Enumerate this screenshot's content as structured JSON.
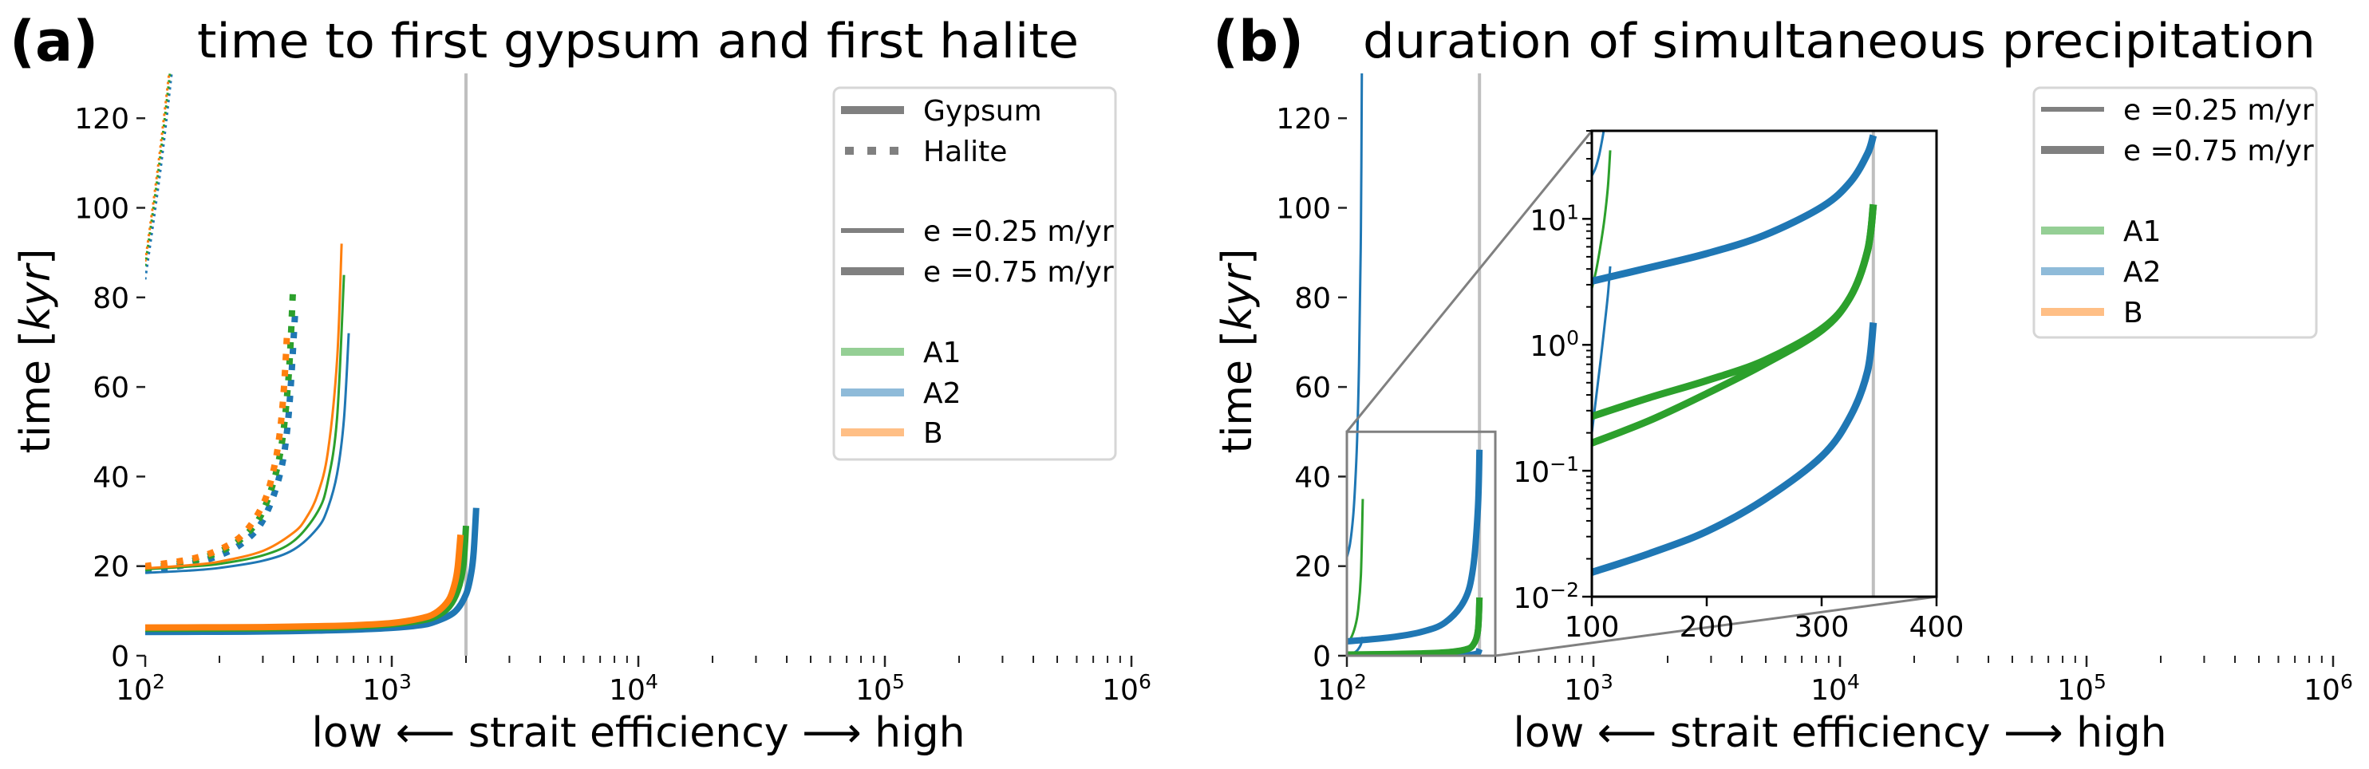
{
  "chart_data": [
    {
      "type": "line",
      "panel_label": "(a)",
      "title": "time to first gypsum and first halite",
      "xlabel": "low ⟵ strait efficiency  ⟶ high",
      "ylabel": "time [kyr]",
      "xscale": "log",
      "xlim": [
        100,
        1000000
      ],
      "ylim": [
        0,
        130
      ],
      "grid": false,
      "xticks": [
        {
          "value": 100,
          "base": "10",
          "exp": "2"
        },
        {
          "value": 1000,
          "base": "10",
          "exp": "3"
        },
        {
          "value": 10000,
          "base": "10",
          "exp": "4"
        },
        {
          "value": 100000,
          "base": "10",
          "exp": "5"
        },
        {
          "value": 1000000,
          "base": "10",
          "exp": "6"
        }
      ],
      "yticks": [
        0,
        20,
        40,
        60,
        80,
        100,
        120
      ],
      "vline": {
        "x": 2000,
        "color": "#bfbfbf"
      },
      "legend": {
        "position": "top-right",
        "entries": [
          {
            "label": "Gypsum",
            "style": "solid",
            "width": "thick",
            "color": "#808080"
          },
          {
            "label": "Halite",
            "style": "dotted",
            "width": "thick",
            "color": "#808080"
          },
          {
            "label": "",
            "style": "none"
          },
          {
            "label": "e =0.25 m/yr",
            "style": "solid",
            "width": "thin",
            "color": "#808080"
          },
          {
            "label": "e =0.75 m/yr",
            "style": "solid",
            "width": "thick",
            "color": "#808080"
          },
          {
            "label": "",
            "style": "none"
          },
          {
            "label": "A1",
            "style": "solid",
            "width": "thick",
            "color": "#2ca02c",
            "alpha": 0.5
          },
          {
            "label": "A2",
            "style": "solid",
            "width": "thick",
            "color": "#1f77b4",
            "alpha": 0.5
          },
          {
            "label": "B",
            "style": "solid",
            "width": "thick",
            "color": "#ff7f0e",
            "alpha": 0.5
          }
        ]
      },
      "series": [
        {
          "group": "A2",
          "mineral": "Halite",
          "e": "0.25 m/yr",
          "color": "#1f77b4",
          "points": [
            [
              100,
              84
            ],
            [
              115,
              108
            ],
            [
              128,
              130
            ]
          ]
        },
        {
          "group": "A1",
          "mineral": "Halite",
          "e": "0.25 m/yr",
          "color": "#2ca02c",
          "points": [
            [
              100,
              87
            ],
            [
              113,
              108
            ],
            [
              126,
              130
            ]
          ]
        },
        {
          "group": "B",
          "mineral": "Halite",
          "e": "0.25 m/yr",
          "color": "#ff7f0e",
          "points": [
            [
              100,
              88
            ],
            [
              112,
              108
            ],
            [
              125,
              130
            ]
          ]
        },
        {
          "group": "A2",
          "mineral": "Halite",
          "e": "0.75 m/yr",
          "color": "#1f77b4",
          "points": [
            [
              100,
              19
            ],
            [
              150,
              20.4
            ],
            [
              200,
              22.4
            ],
            [
              250,
              25.3
            ],
            [
              300,
              30.2
            ],
            [
              350,
              40
            ],
            [
              380,
              52.6
            ],
            [
              405,
              76
            ]
          ]
        },
        {
          "group": "A1",
          "mineral": "Halite",
          "e": "0.75 m/yr",
          "color": "#2ca02c",
          "points": [
            [
              100,
              19.5
            ],
            [
              150,
              21
            ],
            [
              200,
              23.2
            ],
            [
              250,
              26.5
            ],
            [
              300,
              32.2
            ],
            [
              350,
              44.2
            ],
            [
              380,
              61
            ],
            [
              397,
              81
            ]
          ]
        },
        {
          "group": "B",
          "mineral": "Halite",
          "e": "0.75 m/yr",
          "color": "#ff7f0e",
          "points": [
            [
              100,
              20
            ],
            [
              150,
              21.5
            ],
            [
              200,
              23.7
            ],
            [
              250,
              27.2
            ],
            [
              300,
              33.7
            ],
            [
              330,
              41
            ],
            [
              350,
              49
            ],
            [
              365,
              59.5
            ],
            [
              377,
              73
            ]
          ]
        },
        {
          "group": "A2",
          "mineral": "Gypsum",
          "e": "0.25 m/yr",
          "color": "#1f77b4",
          "points": [
            [
              100,
              18.5
            ],
            [
              150,
              19
            ],
            [
              200,
              19.6
            ],
            [
              300,
              21.2
            ],
            [
              400,
              23.7
            ],
            [
              500,
              28.5
            ],
            [
              550,
              32.9
            ],
            [
              600,
              40.6
            ],
            [
              640,
              52.9
            ],
            [
              669,
              72
            ]
          ]
        },
        {
          "group": "A1",
          "mineral": "Gypsum",
          "e": "0.25 m/yr",
          "color": "#2ca02c",
          "points": [
            [
              100,
              19.3
            ],
            [
              150,
              19.9
            ],
            [
              200,
              20.5
            ],
            [
              300,
              22.4
            ],
            [
              400,
              25.6
            ],
            [
              500,
              32.1
            ],
            [
              550,
              38.8
            ],
            [
              600,
              53.1
            ],
            [
              640,
              85
            ]
          ]
        },
        {
          "group": "B",
          "mineral": "Gypsum",
          "e": "0.25 m/yr",
          "color": "#ff7f0e",
          "points": [
            [
              100,
              19.5
            ],
            [
              150,
              20.2
            ],
            [
              200,
              21
            ],
            [
              300,
              23.4
            ],
            [
              400,
              27.5
            ],
            [
              450,
              30.8
            ],
            [
              500,
              36
            ],
            [
              550,
              45.3
            ],
            [
              600,
              66
            ],
            [
              626,
              92
            ]
          ]
        },
        {
          "group": "A2",
          "mineral": "Gypsum",
          "e": "0.75 m/yr",
          "color": "#1f77b4",
          "points": [
            [
              100,
              5.3
            ],
            [
              200,
              5.35
            ],
            [
              300,
              5.4
            ],
            [
              500,
              5.6
            ],
            [
              700,
              5.8
            ],
            [
              1000,
              6.2
            ],
            [
              1300,
              6.8
            ],
            [
              1500,
              7.6
            ],
            [
              1800,
              9.8
            ],
            [
              2000,
              13.7
            ],
            [
              2100,
              18.5
            ],
            [
              2150,
              23.3
            ],
            [
              2200,
              33
            ]
          ]
        },
        {
          "group": "A1",
          "mineral": "Gypsum",
          "e": "0.75 m/yr",
          "color": "#2ca02c",
          "points": [
            [
              100,
              6.0
            ],
            [
              200,
              6.05
            ],
            [
              300,
              6.1
            ],
            [
              500,
              6.3
            ],
            [
              700,
              6.5
            ],
            [
              1000,
              7.0
            ],
            [
              1300,
              7.8
            ],
            [
              1500,
              8.7
            ],
            [
              1700,
              10.8
            ],
            [
              1850,
              14.5
            ],
            [
              1950,
              20
            ],
            [
              2000,
              29
            ]
          ]
        },
        {
          "group": "B",
          "mineral": "Gypsum",
          "e": "0.75 m/yr",
          "color": "#ff7f0e",
          "points": [
            [
              100,
              6.3
            ],
            [
              200,
              6.35
            ],
            [
              300,
              6.4
            ],
            [
              500,
              6.6
            ],
            [
              700,
              6.8
            ],
            [
              1000,
              7.3
            ],
            [
              1300,
              8.3
            ],
            [
              1500,
              9.5
            ],
            [
              1700,
              12.4
            ],
            [
              1800,
              16.1
            ],
            [
              1850,
              19.7
            ],
            [
              1900,
              27
            ]
          ]
        }
      ]
    },
    {
      "type": "line",
      "panel_label": "(b)",
      "title": "duration of simultaneous precipitation",
      "xlabel": "low ⟵ strait efficiency  ⟶ high",
      "ylabel": "time [kyr]",
      "xscale": "log",
      "xlim": [
        100,
        1000000
      ],
      "ylim": [
        0,
        130
      ],
      "grid": false,
      "xticks": [
        {
          "value": 100,
          "base": "10",
          "exp": "2"
        },
        {
          "value": 1000,
          "base": "10",
          "exp": "3"
        },
        {
          "value": 10000,
          "base": "10",
          "exp": "4"
        },
        {
          "value": 100000,
          "base": "10",
          "exp": "5"
        },
        {
          "value": 1000000,
          "base": "10",
          "exp": "6"
        }
      ],
      "yticks": [
        0,
        20,
        40,
        60,
        80,
        100,
        120
      ],
      "vline": {
        "x": 345,
        "color": "#bfbfbf"
      },
      "zoom_region": {
        "x": [
          100,
          400
        ],
        "y": [
          0,
          50
        ]
      },
      "legend": {
        "position": "top-right",
        "entries": [
          {
            "label": "e =0.25 m/yr",
            "style": "solid",
            "width": "thin",
            "color": "#808080"
          },
          {
            "label": "e =0.75 m/yr",
            "style": "solid",
            "width": "thick",
            "color": "#808080"
          },
          {
            "label": "",
            "style": "none"
          },
          {
            "label": "A1",
            "style": "solid",
            "width": "thick",
            "color": "#2ca02c",
            "alpha": 0.5
          },
          {
            "label": "A2",
            "style": "solid",
            "width": "thick",
            "color": "#1f77b4",
            "alpha": 0.5
          },
          {
            "label": "B",
            "style": "solid",
            "width": "thick",
            "color": "#ff7f0e",
            "alpha": 0.5
          }
        ]
      },
      "series": [
        {
          "group": "A2",
          "e": "0.25 m/yr",
          "color": "#1f77b4",
          "points": [
            [
              100,
              22
            ],
            [
              103,
              25
            ],
            [
              106,
              31
            ],
            [
              108,
              38
            ],
            [
              110,
              48
            ],
            [
              112,
              65
            ],
            [
              114,
              95
            ],
            [
              115,
              130
            ]
          ]
        },
        {
          "group": "A2",
          "e": "0.25 m/yr",
          "color": "#1f77b4",
          "points": [
            [
              100,
              0.2
            ],
            [
              104,
              0.4
            ],
            [
              108,
              0.8
            ],
            [
              111,
              1.4
            ],
            [
              114,
              2.5
            ],
            [
              116,
              4.2
            ]
          ]
        },
        {
          "group": "A1",
          "e": "0.25 m/yr",
          "color": "#2ca02c",
          "points": [
            [
              100,
              2.8
            ],
            [
              104,
              4
            ],
            [
              108,
              6.5
            ],
            [
              111,
              10
            ],
            [
              114,
              18
            ],
            [
              116,
              35
            ]
          ]
        },
        {
          "group": "A2",
          "e": "0.75 m/yr",
          "color": "#1f77b4",
          "points": [
            [
              100,
              3.2
            ],
            [
              150,
              4.1
            ],
            [
              200,
              5.3
            ],
            [
              250,
              7.4
            ],
            [
              300,
              12.4
            ],
            [
              325,
              19.6
            ],
            [
              340,
              33
            ],
            [
              345,
              46
            ]
          ]
        },
        {
          "group": "A2",
          "e": "0.75 m/yr",
          "color": "#1f77b4",
          "points": [
            [
              100,
              0.0156
            ],
            [
              150,
              0.022
            ],
            [
              200,
              0.033
            ],
            [
              250,
              0.059
            ],
            [
              300,
              0.13
            ],
            [
              325,
              0.27
            ],
            [
              340,
              0.62
            ],
            [
              345,
              1.5
            ]
          ]
        },
        {
          "group": "A1",
          "e": "0.75 m/yr",
          "color": "#2ca02c",
          "points": [
            [
              100,
              0.27
            ],
            [
              150,
              0.38
            ],
            [
              200,
              0.52
            ],
            [
              250,
              0.75
            ],
            [
              300,
              1.34
            ],
            [
              325,
              2.4
            ],
            [
              340,
              5.6
            ],
            [
              345,
              13
            ]
          ]
        },
        {
          "group": "A1",
          "e": "0.75 m/yr",
          "color": "#2ca02c",
          "points": [
            [
              100,
              0.166
            ],
            [
              150,
              0.25
            ],
            [
              200,
              0.41
            ],
            [
              250,
              0.7
            ],
            [
              300,
              1.3
            ],
            [
              325,
              2.4
            ],
            [
              340,
              5.6
            ],
            [
              345,
              13
            ]
          ]
        }
      ],
      "inset": {
        "xscale": "linear",
        "yscale": "log",
        "xlim": [
          100,
          400
        ],
        "ylim": [
          0.01,
          50
        ],
        "xticks": [
          100,
          200,
          300,
          400
        ],
        "yticks": [
          {
            "value": 0.01,
            "base": "10",
            "exp": "−2"
          },
          {
            "value": 0.1,
            "base": "10",
            "exp": "−1"
          },
          {
            "value": 1,
            "base": "10",
            "exp": "0"
          },
          {
            "value": 10,
            "base": "10",
            "exp": "1"
          }
        ]
      }
    }
  ]
}
